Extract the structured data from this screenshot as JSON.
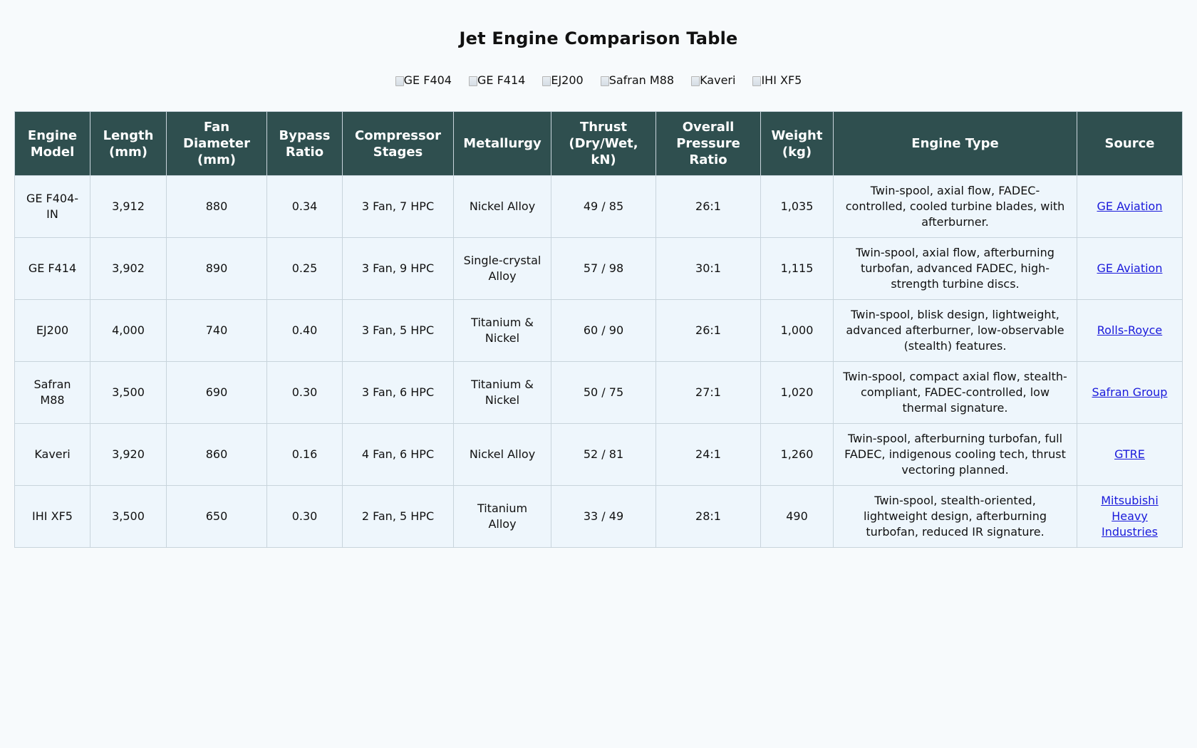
{
  "page": {
    "title": "Jet Engine Comparison Table"
  },
  "images": [
    {
      "alt": "GE F404",
      "icon": "broken-image-icon"
    },
    {
      "alt": "GE F414",
      "icon": "broken-image-icon"
    },
    {
      "alt": "EJ200",
      "icon": "broken-image-icon"
    },
    {
      "alt": "Safran M88",
      "icon": "broken-image-icon"
    },
    {
      "alt": "Kaveri",
      "icon": "broken-image-icon"
    },
    {
      "alt": "IHI XF5",
      "icon": "broken-image-icon"
    }
  ],
  "colors": {
    "header_bg": "#2f4f4f",
    "row_bg": "#eef6fc",
    "link": "#1a1adb",
    "page_bg": "#f7fafc"
  },
  "table": {
    "headers": [
      "Engine Model",
      "Length (mm)",
      "Fan Diameter (mm)",
      "Bypass Ratio",
      "Compressor Stages",
      "Metallurgy",
      "Thrust (Dry/Wet, kN)",
      "Overall Pressure Ratio",
      "Weight (kg)",
      "Engine Type",
      "Source"
    ],
    "rows": [
      {
        "model": "GE F404-IN",
        "length": "3,912",
        "fan_diameter": "880",
        "bypass": "0.34",
        "stages": "3 Fan, 7 HPC",
        "metallurgy": "Nickel Alloy",
        "thrust": "49 / 85",
        "opr": "26:1",
        "weight": "1,035",
        "type": "Twin-spool, axial flow, FADEC-controlled, cooled turbine blades, with afterburner.",
        "source": "GE Aviation"
      },
      {
        "model": "GE F414",
        "length": "3,902",
        "fan_diameter": "890",
        "bypass": "0.25",
        "stages": "3 Fan, 9 HPC",
        "metallurgy": "Single-crystal Alloy",
        "thrust": "57 / 98",
        "opr": "30:1",
        "weight": "1,115",
        "type": "Twin-spool, axial flow, afterburning turbofan, advanced FADEC, high-strength turbine discs.",
        "source": "GE Aviation"
      },
      {
        "model": "EJ200",
        "length": "4,000",
        "fan_diameter": "740",
        "bypass": "0.40",
        "stages": "3 Fan, 5 HPC",
        "metallurgy": "Titanium & Nickel",
        "thrust": "60 / 90",
        "opr": "26:1",
        "weight": "1,000",
        "type": "Twin-spool, blisk design, lightweight, advanced afterburner, low-observable (stealth) features.",
        "source": "Rolls-Royce"
      },
      {
        "model": "Safran M88",
        "length": "3,500",
        "fan_diameter": "690",
        "bypass": "0.30",
        "stages": "3 Fan, 6 HPC",
        "metallurgy": "Titanium & Nickel",
        "thrust": "50 / 75",
        "opr": "27:1",
        "weight": "1,020",
        "type": "Twin-spool, compact axial flow, stealth-compliant, FADEC-controlled, low thermal signature.",
        "source": "Safran Group"
      },
      {
        "model": "Kaveri",
        "length": "3,920",
        "fan_diameter": "860",
        "bypass": "0.16",
        "stages": "4 Fan, 6 HPC",
        "metallurgy": "Nickel Alloy",
        "thrust": "52 / 81",
        "opr": "24:1",
        "weight": "1,260",
        "type": "Twin-spool, afterburning turbofan, full FADEC, indigenous cooling tech, thrust vectoring planned.",
        "source": "GTRE"
      },
      {
        "model": "IHI XF5",
        "length": "3,500",
        "fan_diameter": "650",
        "bypass": "0.30",
        "stages": "2 Fan, 5 HPC",
        "metallurgy": "Titanium Alloy",
        "thrust": "33 / 49",
        "opr": "28:1",
        "weight": "490",
        "type": "Twin-spool, stealth-oriented, lightweight design, afterburning turbofan, reduced IR signature.",
        "source": "Mitsubishi Heavy Industries"
      }
    ]
  }
}
